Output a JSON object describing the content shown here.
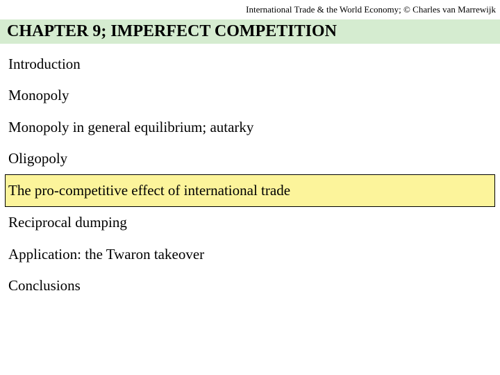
{
  "attribution": "International Trade & the World Economy;  © Charles van Marrewijk",
  "chapter_title": "CHAPTER 9; IMPERFECT COMPETITION",
  "chapter_title_bg": "#d5ecd0",
  "highlight_bg": "#fcf49b",
  "toc": [
    {
      "label": "Introduction",
      "highlighted": false
    },
    {
      "label": "Monopoly",
      "highlighted": false
    },
    {
      "label": "Monopoly in general equilibrium; autarky",
      "highlighted": false
    },
    {
      "label": "Oligopoly",
      "highlighted": false
    },
    {
      "label": "The pro-competitive effect of international trade",
      "highlighted": true
    },
    {
      "label": "Reciprocal dumping",
      "highlighted": false
    },
    {
      "label": "Application: the Twaron takeover",
      "highlighted": false
    },
    {
      "label": "Conclusions",
      "highlighted": false
    }
  ]
}
